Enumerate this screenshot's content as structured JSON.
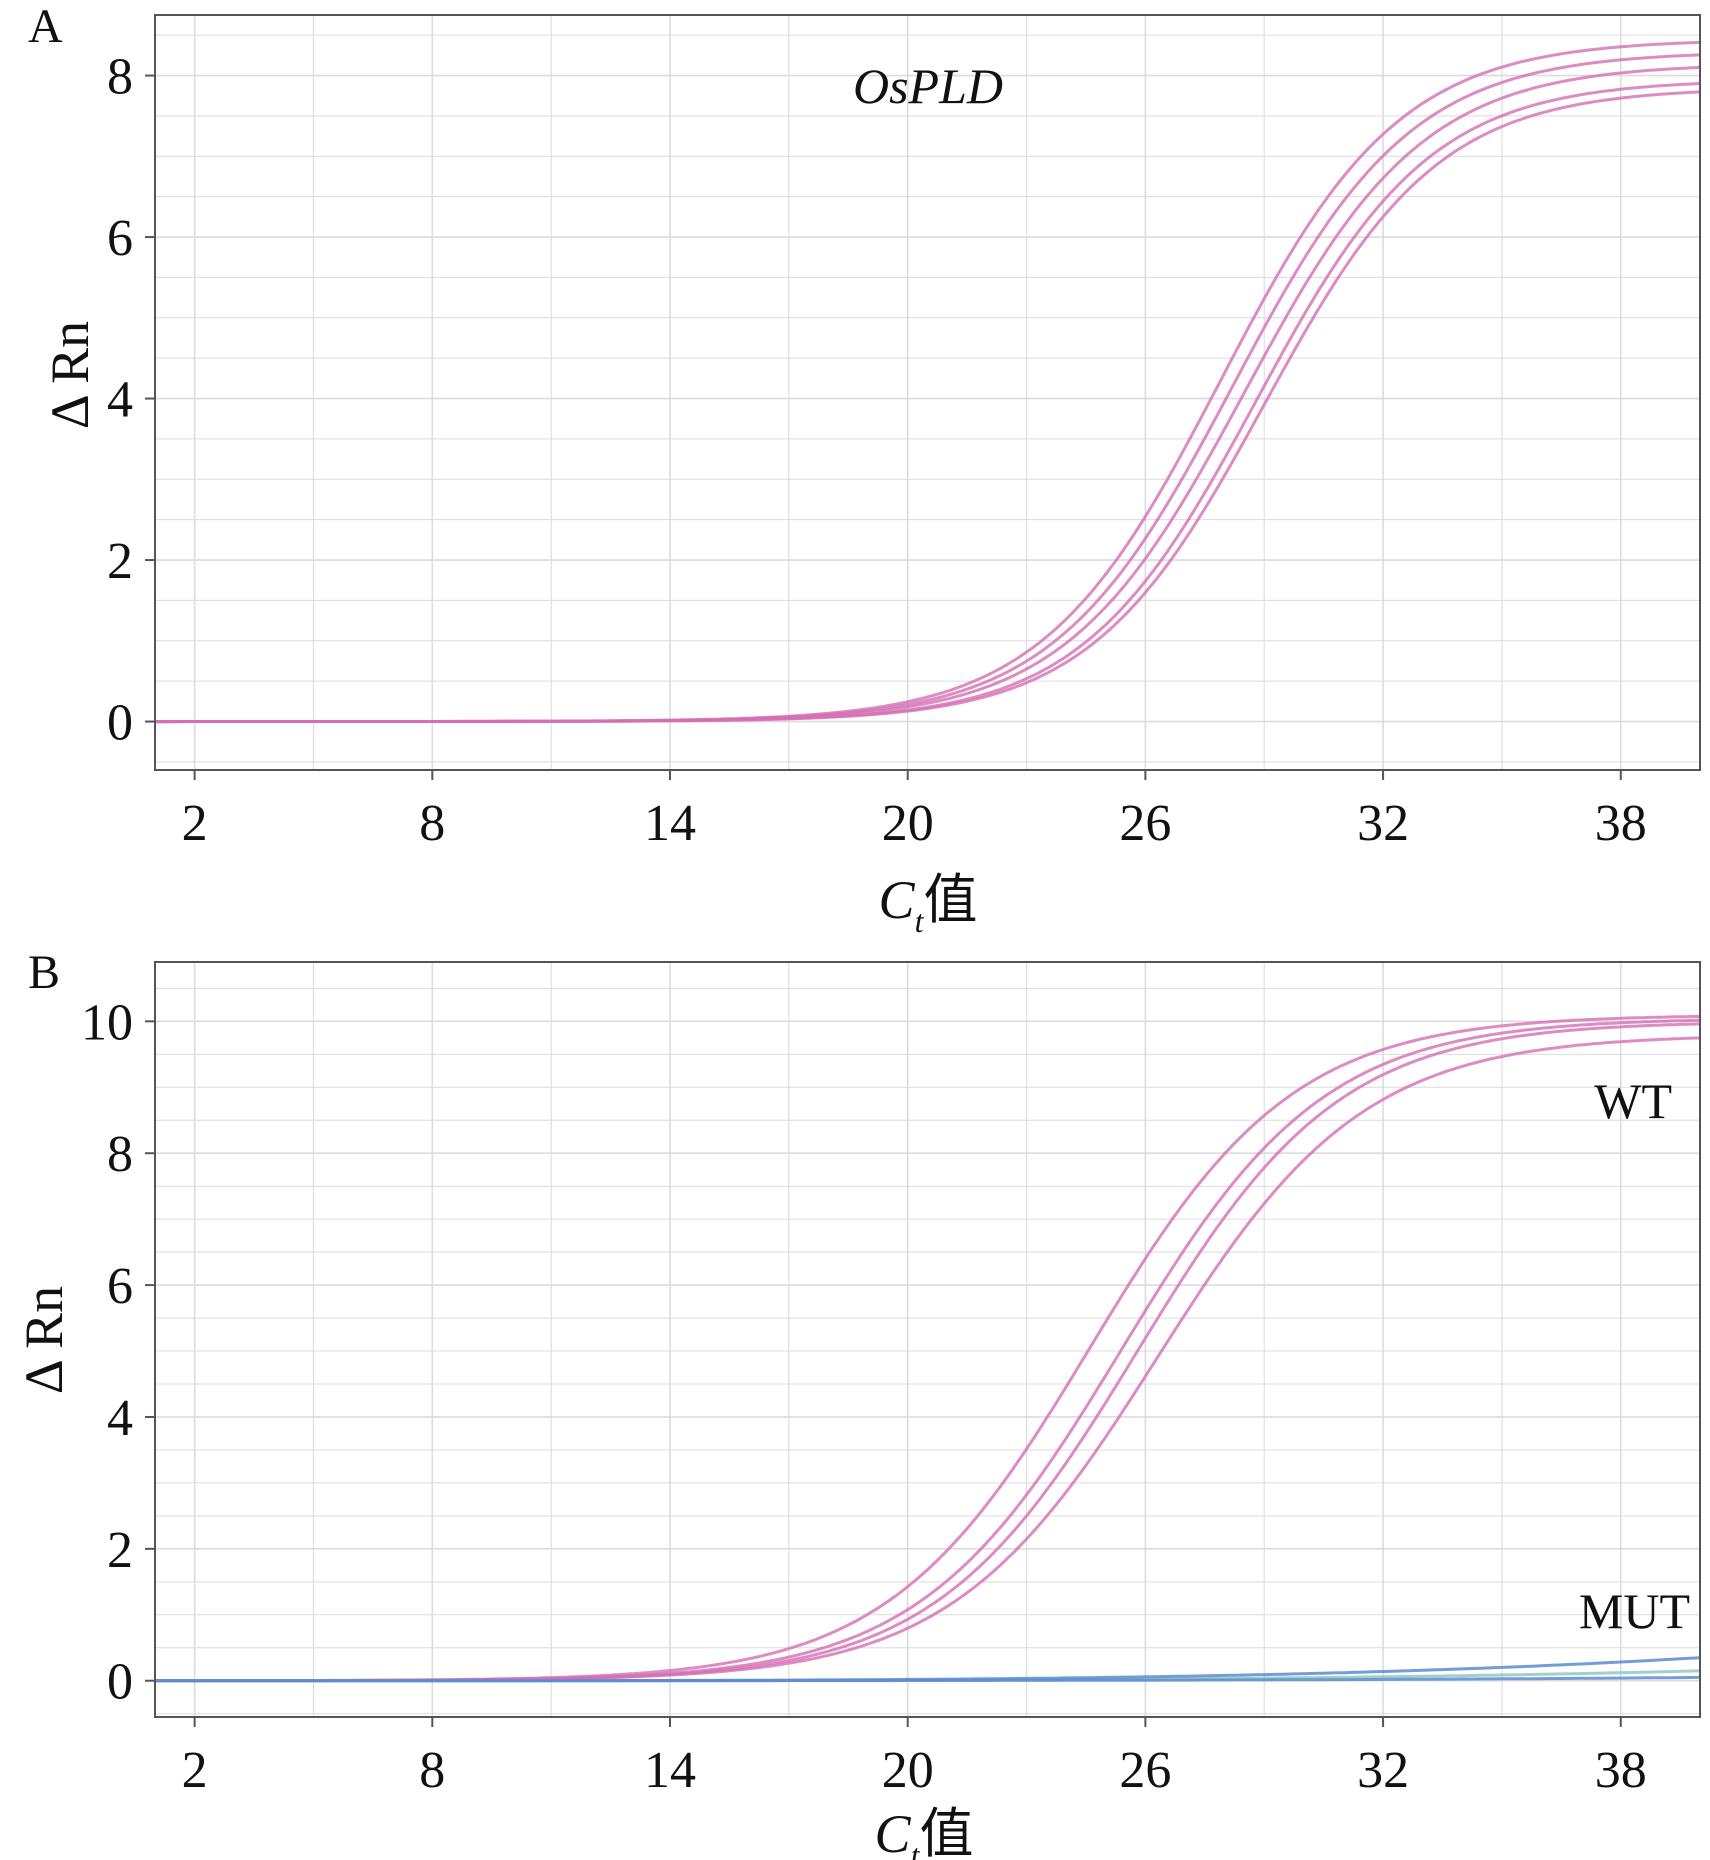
{
  "figure": {
    "panel_a_letter": "A",
    "panel_b_letter": "B"
  },
  "chart_data": [
    {
      "type": "line",
      "panel": "A",
      "annotation": "OsPLD",
      "xlabel": {
        "main": "C",
        "sub": "t",
        "suffix": "值"
      },
      "ylabel": "Δ Rn",
      "xlim": [
        1,
        40
      ],
      "ylim": [
        -0.6,
        8.75
      ],
      "xticks": [
        2,
        8,
        14,
        20,
        26,
        32,
        38
      ],
      "yticks": [
        0,
        2,
        4,
        6,
        8
      ],
      "grid": true,
      "colors": {
        "curve": "#d46fb4",
        "grid": "#dcdcdc",
        "axis": "#555555"
      },
      "series": [
        {
          "midpoint": 27.9,
          "plateau": 8.45,
          "slope": 2.25
        },
        {
          "midpoint": 28.2,
          "plateau": 8.3,
          "slope": 2.25
        },
        {
          "midpoint": 28.5,
          "plateau": 8.15,
          "slope": 2.25
        },
        {
          "midpoint": 28.8,
          "plateau": 7.95,
          "slope": 2.2
        },
        {
          "midpoint": 29.0,
          "plateau": 7.85,
          "slope": 2.2
        }
      ]
    },
    {
      "type": "line",
      "panel": "B",
      "annotations": {
        "wt": "WT",
        "mut": "MUT"
      },
      "xlabel": {
        "main": "C",
        "sub": "t",
        "suffix": "值"
      },
      "ylabel": "Δ Rn",
      "xlim": [
        1,
        40
      ],
      "ylim": [
        -0.55,
        10.9
      ],
      "xticks": [
        2,
        8,
        14,
        20,
        26,
        32,
        38
      ],
      "yticks": [
        0,
        2,
        4,
        6,
        8,
        10
      ],
      "grid": true,
      "colors": {
        "curve": "#d46fb4",
        "mut_curve": "#5a8ccf",
        "mut_curve_2": "#8fc8c0",
        "grid": "#dcdcdc",
        "axis": "#555555"
      },
      "series": [
        {
          "name": "WT",
          "midpoint": 24.6,
          "plateau": 10.1,
          "slope": 2.55
        },
        {
          "name": "WT",
          "midpoint": 25.4,
          "plateau": 10.05,
          "slope": 2.55
        },
        {
          "name": "WT",
          "midpoint": 25.8,
          "plateau": 10.0,
          "slope": 2.55
        },
        {
          "name": "WT",
          "midpoint": 26.3,
          "plateau": 9.8,
          "slope": 2.6
        }
      ],
      "mut_series": [
        {
          "name": "MUT",
          "start": 0.0,
          "end": 0.15
        },
        {
          "name": "MUT",
          "start": 0.0,
          "end": 0.35
        },
        {
          "name": "MUT",
          "start": 0.0,
          "end": 0.05
        }
      ]
    }
  ]
}
